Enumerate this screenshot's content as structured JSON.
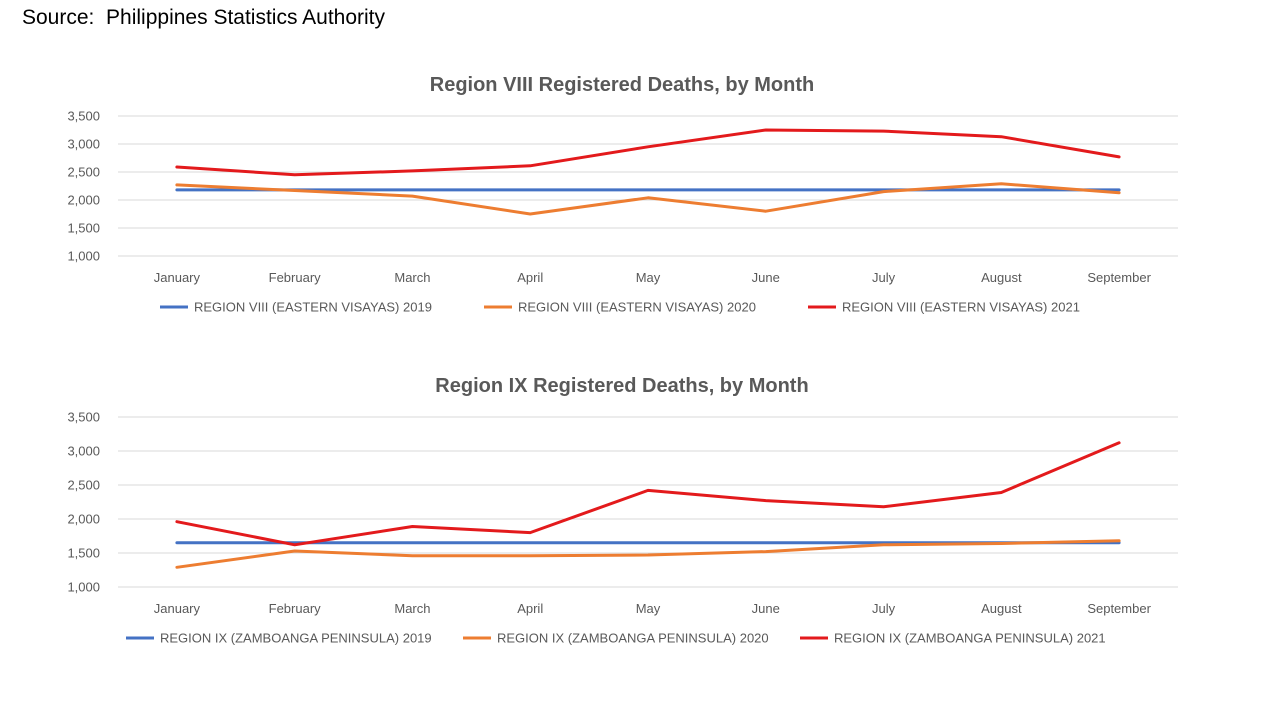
{
  "source_text": "Source:  Philippines Statistics Authority",
  "chart_data": [
    {
      "type": "line",
      "title": "Region VIII Registered Deaths, by Month",
      "xlabel": "",
      "ylabel": "",
      "categories": [
        "January",
        "February",
        "March",
        "April",
        "May",
        "June",
        "July",
        "August",
        "September"
      ],
      "ylim": [
        1000,
        3500
      ],
      "y_ticks": [
        "1,000",
        "1,500",
        "2,000",
        "2,500",
        "3,000",
        "3,500"
      ],
      "grid": true,
      "legend_position": "bottom",
      "series": [
        {
          "name": "REGION VIII (EASTERN VISAYAS) 2019",
          "color": "#4472C4",
          "values": [
            2180,
            2180,
            2180,
            2180,
            2180,
            2180,
            2180,
            2180,
            2180
          ]
        },
        {
          "name": "REGION VIII (EASTERN VISAYAS) 2020",
          "color": "#ED7D31",
          "values": [
            2270,
            2170,
            2070,
            1750,
            2040,
            1800,
            2150,
            2290,
            2130
          ]
        },
        {
          "name": "REGION VIII (EASTERN VISAYAS) 2021",
          "color": "#E31A1C",
          "values": [
            2590,
            2450,
            2520,
            2610,
            2950,
            3250,
            3230,
            3130,
            2770
          ]
        }
      ]
    },
    {
      "type": "line",
      "title": "Region IX Registered Deaths, by Month",
      "xlabel": "",
      "ylabel": "",
      "categories": [
        "January",
        "February",
        "March",
        "April",
        "May",
        "June",
        "July",
        "August",
        "September"
      ],
      "ylim": [
        1000,
        3500
      ],
      "y_ticks": [
        "1,000",
        "1,500",
        "2,000",
        "2,500",
        "3,000",
        "3,500"
      ],
      "grid": true,
      "legend_position": "bottom",
      "series": [
        {
          "name": "REGION IX (ZAMBOANGA PENINSULA) 2019",
          "color": "#4472C4",
          "values": [
            1650,
            1650,
            1650,
            1650,
            1650,
            1650,
            1650,
            1650,
            1650
          ]
        },
        {
          "name": "REGION IX (ZAMBOANGA PENINSULA) 2020",
          "color": "#ED7D31",
          "values": [
            1290,
            1530,
            1460,
            1460,
            1470,
            1520,
            1620,
            1640,
            1680
          ]
        },
        {
          "name": "REGION IX (ZAMBOANGA PENINSULA) 2021",
          "color": "#E31A1C",
          "values": [
            1960,
            1620,
            1890,
            1800,
            2420,
            2270,
            2180,
            2390,
            3120
          ]
        }
      ]
    }
  ]
}
